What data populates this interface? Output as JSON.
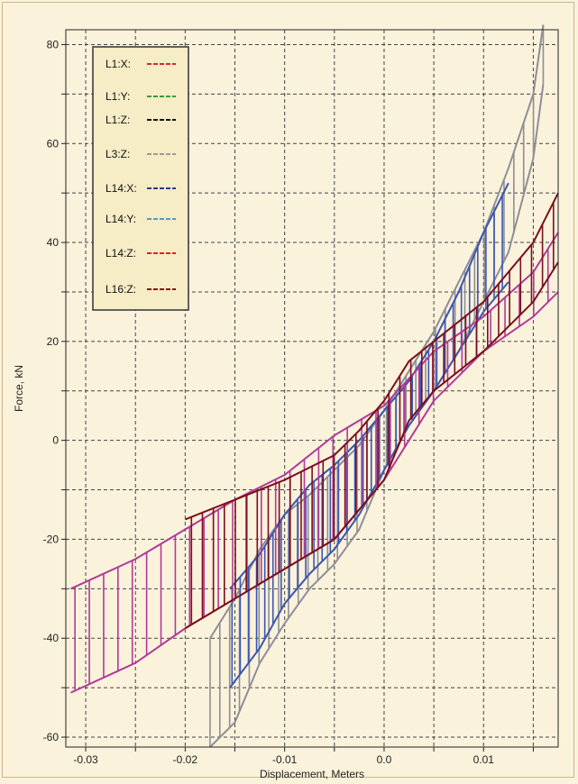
{
  "chart_data": {
    "type": "line",
    "title": "",
    "xlabel": "Displacement, Meters",
    "ylabel": "Force, kN",
    "xlim": [
      -0.032,
      0.0175
    ],
    "ylim": [
      -62,
      83
    ],
    "xticks": [
      -0.03,
      -0.025,
      -0.02,
      -0.015,
      -0.01,
      -0.005,
      0,
      0.005,
      0.01,
      0.015
    ],
    "xtick_labels": [
      "-0.03",
      "",
      "-0.02",
      "",
      "-0.01",
      "",
      "0.0",
      "",
      "0.01",
      ""
    ],
    "yticks": [
      -60,
      -50,
      -40,
      -30,
      -20,
      -10,
      0,
      10,
      20,
      30,
      40,
      50,
      60,
      70,
      80
    ],
    "ytick_labels": [
      "-60",
      "",
      "-40",
      "",
      "-20",
      "",
      "0",
      "",
      "20",
      "",
      "40",
      "",
      "60",
      "",
      "80"
    ],
    "grid": true,
    "legend_position": "top-left",
    "series": [
      {
        "name": "L1:X:",
        "color": "#d42a2a",
        "dash": true
      },
      {
        "name": "L1:Y:",
        "color": "#3a9a3a",
        "dash": true
      },
      {
        "name": "L1:Z:",
        "color": "#111111",
        "dash": true
      },
      {
        "name": "L3:Z:",
        "color": "#9a9a9a",
        "dash": true
      },
      {
        "name": "L14:X:",
        "color": "#243d8a",
        "dash": true
      },
      {
        "name": "L14:Y:",
        "color": "#5a9ab5",
        "dash": true
      },
      {
        "name": "L14:Z:",
        "color": "#e02020",
        "dash": true
      },
      {
        "name": "L16:Z:",
        "color": "#8b1010",
        "dash": true
      }
    ],
    "curves": [
      {
        "series": "L3:Z:",
        "color": "#8e8e96",
        "x": [
          -0.0175,
          -0.015,
          -0.0125,
          -0.01,
          -0.0075,
          -0.005,
          -0.0025,
          0,
          0.0025,
          0.005,
          0.0075,
          0.01,
          0.0125,
          0.015,
          0.016
        ],
        "y_lower": [
          -62,
          -57,
          -45,
          -37,
          -30,
          -25,
          -18,
          -6,
          3,
          10,
          18,
          28,
          38,
          57,
          72
        ],
        "y_upper": [
          -40,
          -32,
          -22,
          -15,
          -11,
          -6,
          -1,
          6,
          14,
          22,
          32,
          42,
          55,
          70,
          84
        ]
      },
      {
        "series": "L14:X:",
        "color": "#3a56b0",
        "x": [
          -0.0155,
          -0.0125,
          -0.01,
          -0.0075,
          -0.005,
          -0.0025,
          0,
          0.0025,
          0.005,
          0.0075,
          0.01,
          0.0125
        ],
        "y_lower": [
          -50,
          -42,
          -33,
          -27,
          -22,
          -15,
          -6,
          3,
          10,
          18,
          26,
          32
        ],
        "y_upper": [
          -30,
          -23,
          -15,
          -9,
          -5,
          0,
          6,
          12,
          20,
          30,
          42,
          52
        ]
      },
      {
        "series": "L14:Z:",
        "color": "#b03a98",
        "x": [
          -0.0315,
          -0.025,
          -0.02,
          -0.015,
          -0.01,
          -0.005,
          0,
          0.005,
          0.01,
          0.015,
          0.0175
        ],
        "y_lower": [
          -51,
          -45,
          -38,
          -32,
          -26,
          -20,
          -8,
          8,
          18,
          25,
          30
        ],
        "y_upper": [
          -30,
          -24,
          -18,
          -12,
          -7,
          1,
          7,
          18,
          25,
          34,
          42
        ]
      },
      {
        "series": "L16:Z:",
        "color": "#7a0f1e",
        "x": [
          -0.02,
          -0.015,
          -0.01,
          -0.005,
          -0.0025,
          0,
          0.0025,
          0.005,
          0.01,
          0.015,
          0.0175
        ],
        "y_lower": [
          -38,
          -32,
          -26,
          -20,
          -14,
          -8,
          4,
          10,
          18,
          28,
          36
        ],
        "y_upper": [
          -16,
          -12,
          -8,
          -3,
          2,
          8,
          16,
          20,
          28,
          40,
          50
        ]
      }
    ]
  }
}
